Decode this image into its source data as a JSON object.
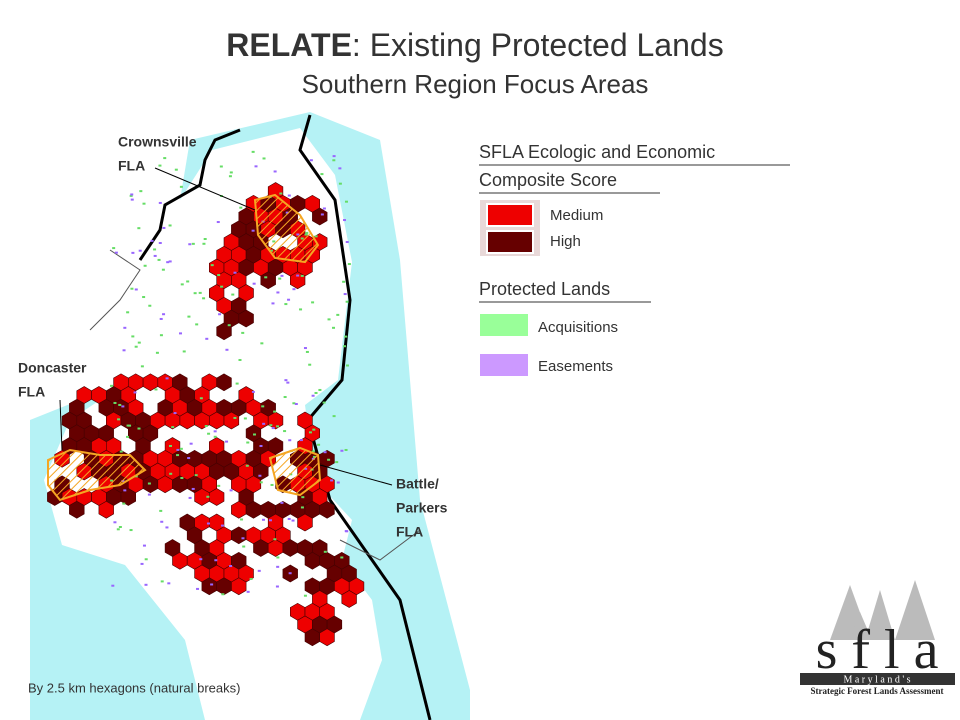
{
  "header": {
    "title_bold": "RELATE",
    "title_rest": ":  Existing Protected Lands",
    "subtitle": "Southern Region Focus Areas"
  },
  "score_legend": {
    "title_lines": [
      "SFLA Ecologic and Economic",
      "Composite Score"
    ],
    "items": [
      {
        "label": "Medium",
        "color": "#ee0000"
      },
      {
        "label": "High",
        "color": "#660000"
      }
    ]
  },
  "protected_legend": {
    "title": "Protected Lands",
    "items": [
      {
        "label": "Acquisitions",
        "color": "#99ff99"
      },
      {
        "label": "Easements",
        "color": "#cc99ff"
      }
    ]
  },
  "map_labels": [
    {
      "lines": [
        "Crownsville",
        "FLA"
      ]
    },
    {
      "lines": [
        "Doncaster",
        "FLA"
      ]
    },
    {
      "lines": [
        "Battle/",
        "Parkers",
        "FLA"
      ]
    }
  ],
  "footnote": "By 2.5 km hexagons (natural breaks)",
  "logo": {
    "word": "s f l a",
    "state": "M a r y l a n d ' s",
    "tagline": "Strategic Forest Lands Assessment"
  }
}
